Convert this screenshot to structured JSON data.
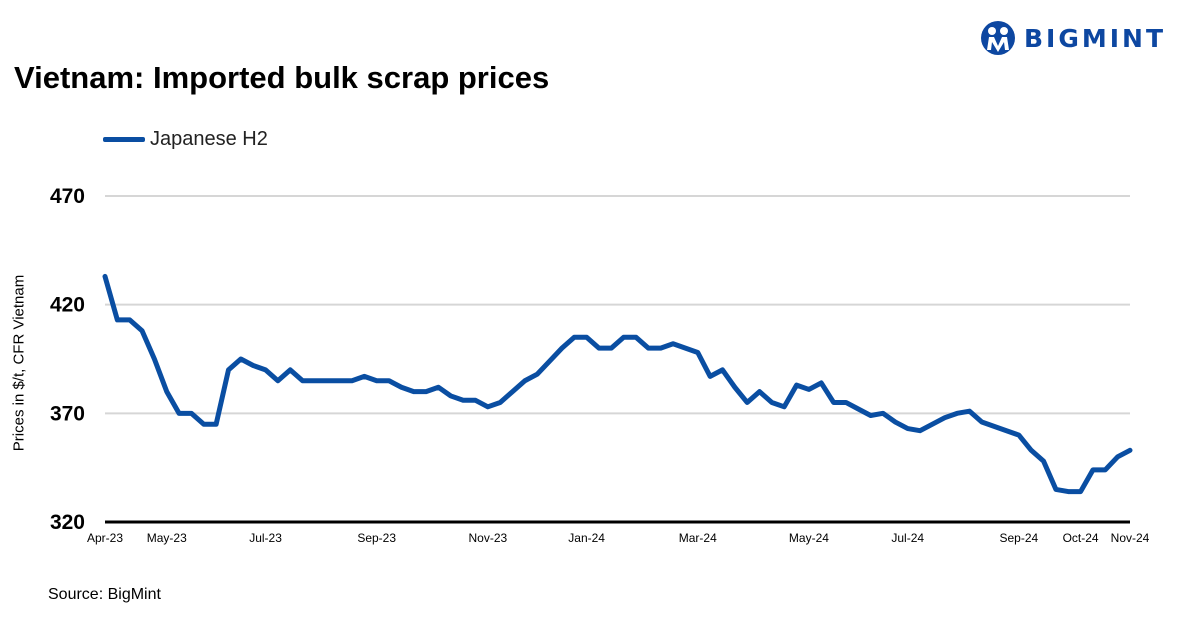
{
  "title": "Vietnam: Imported bulk scrap prices",
  "logo": {
    "text": "BIGMINT",
    "color": "#0d47a1"
  },
  "source": "Source: BigMint",
  "chart_data": {
    "type": "line",
    "title": "Vietnam: Imported bulk scrap prices",
    "ylabel": "Prices in $/t, CFR Vietnam",
    "xlabel": "",
    "ylim": [
      320,
      470
    ],
    "yticks": [
      320,
      370,
      420,
      470
    ],
    "grid": true,
    "legend": "top-left",
    "xticks": [
      {
        "label": "Apr-23",
        "index": 0
      },
      {
        "label": "May-23",
        "index": 5
      },
      {
        "label": "Jul-23",
        "index": 13
      },
      {
        "label": "Sep-23",
        "index": 22
      },
      {
        "label": "Nov-23",
        "index": 31
      },
      {
        "label": "Jan-24",
        "index": 39
      },
      {
        "label": "Mar-24",
        "index": 48
      },
      {
        "label": "May-24",
        "index": 57
      },
      {
        "label": "Jul-24",
        "index": 65
      },
      {
        "label": "Sep-24",
        "index": 74
      },
      {
        "label": "Oct-24",
        "index": 79
      },
      {
        "label": "Nov-24",
        "index": 83
      }
    ],
    "series": [
      {
        "name": "Japanese H2",
        "color": "#0a4ea2",
        "values": [
          433,
          413,
          413,
          408,
          395,
          380,
          370,
          370,
          365,
          365,
          390,
          395,
          392,
          390,
          385,
          390,
          385,
          385,
          385,
          385,
          385,
          387,
          385,
          385,
          382,
          380,
          380,
          382,
          378,
          376,
          376,
          373,
          375,
          380,
          385,
          388,
          394,
          400,
          405,
          405,
          400,
          400,
          405,
          405,
          400,
          400,
          402,
          400,
          398,
          387,
          390,
          382,
          375,
          380,
          375,
          373,
          383,
          381,
          384,
          375,
          375,
          372,
          369,
          370,
          366,
          363,
          362,
          365,
          368,
          370,
          371,
          366,
          364,
          362,
          360,
          353,
          348,
          335,
          334,
          334,
          344,
          344,
          350,
          353
        ]
      }
    ]
  }
}
